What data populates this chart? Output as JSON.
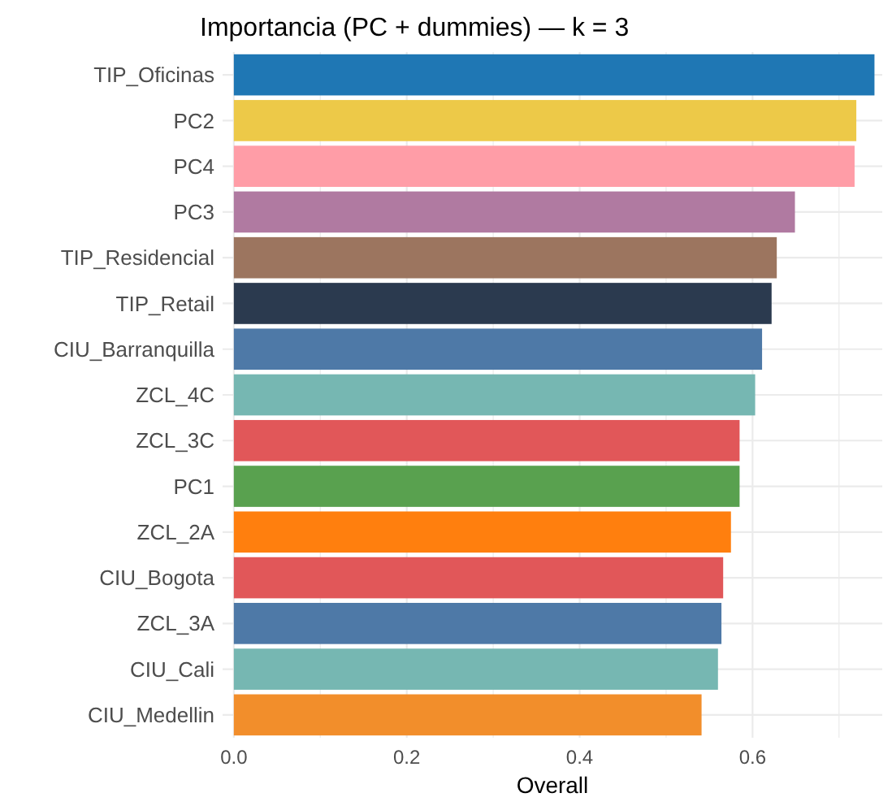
{
  "chart_data": {
    "type": "bar",
    "orientation": "horizontal",
    "title": "Importancia (PC + dummies) — k = 3",
    "xlabel": "Overall",
    "categories": [
      "TIP_Oficinas",
      "PC2",
      "PC4",
      "PC3",
      "TIP_Residencial",
      "TIP_Retail",
      "CIU_Barranquilla",
      "ZCL_4C",
      "ZCL_3C",
      "PC1",
      "ZCL_2A",
      "CIU_Bogota",
      "ZCL_3A",
      "CIU_Cali",
      "CIU_Medellin"
    ],
    "values": [
      0.741,
      0.72,
      0.718,
      0.649,
      0.628,
      0.622,
      0.611,
      0.603,
      0.585,
      0.585,
      0.575,
      0.566,
      0.564,
      0.56,
      0.541
    ],
    "colors": [
      "#1f77b4",
      "#edc948",
      "#ff9da7",
      "#b07aa1",
      "#9c755f",
      "#2b3a4f",
      "#4e79a7",
      "#76b7b2",
      "#e15759",
      "#59a14f",
      "#ff7f0e",
      "#e15759",
      "#4e79a7",
      "#76b7b2",
      "#f28e2b"
    ],
    "xlim": [
      -0.013,
      0.75
    ],
    "xticks": [
      {
        "value": 0,
        "label": "0.0"
      },
      {
        "value": 0.1,
        "label": null
      },
      {
        "value": 0.2,
        "label": "0.2"
      },
      {
        "value": 0.3,
        "label": null
      },
      {
        "value": 0.4,
        "label": "0.4"
      },
      {
        "value": 0.5,
        "label": null
      },
      {
        "value": 0.6,
        "label": "0.6"
      },
      {
        "value": 0.7,
        "label": null
      }
    ],
    "grid": true
  }
}
